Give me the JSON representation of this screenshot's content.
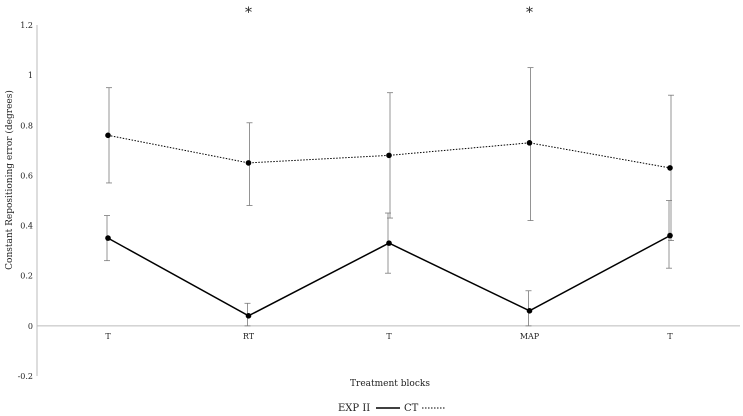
{
  "chart_data": {
    "type": "line",
    "categories": [
      "T",
      "RT",
      "T",
      "MAP",
      "T"
    ],
    "xlabel": "Treatment blocks",
    "ylabel": "Constant Repositioning error (degrees)",
    "ylim": [
      -0.2,
      1.2
    ],
    "yticks": [
      "-0.2",
      "0",
      "0.2",
      "0.4",
      "0.6",
      "0.8",
      "1",
      "1.2"
    ],
    "grid": false,
    "legend_position": "bottom-center",
    "series": [
      {
        "name": "EXP II",
        "style": "solid",
        "color": "#000000",
        "values": [
          0.35,
          0.04,
          0.33,
          0.06,
          0.36
        ],
        "error_low": [
          0.26,
          0.0,
          0.21,
          0.0,
          0.23
        ],
        "error_high": [
          0.44,
          0.09,
          0.45,
          0.14,
          0.5
        ]
      },
      {
        "name": "CT",
        "style": "dotted",
        "color": "#000000",
        "values": [
          0.76,
          0.65,
          0.68,
          0.73,
          0.63
        ],
        "error_low": [
          0.57,
          0.48,
          0.43,
          0.42,
          0.34
        ],
        "error_high": [
          0.95,
          0.81,
          0.93,
          1.03,
          0.92
        ]
      }
    ],
    "annotations": [
      {
        "text": "*",
        "category_index": 1
      },
      {
        "text": "*",
        "category_index": 3
      }
    ]
  }
}
